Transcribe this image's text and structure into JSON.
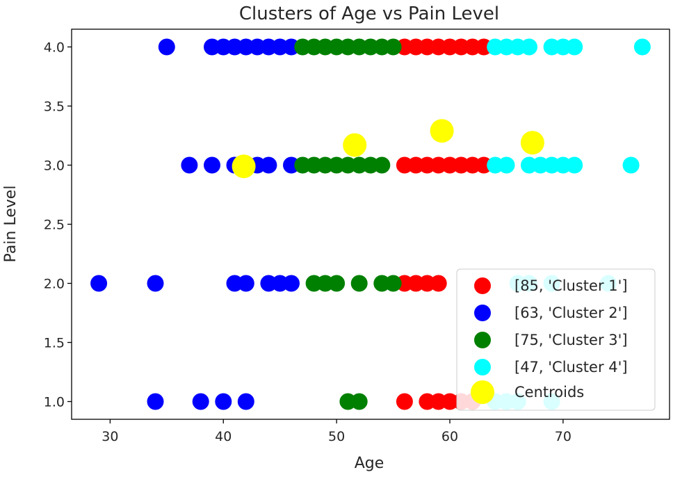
{
  "chart_data": {
    "type": "scatter",
    "title": "Clusters of Age vs Pain Level",
    "xlabel": "Age",
    "ylabel": "Pain Level",
    "xlim": [
      26.6,
      79.4
    ],
    "ylim": [
      0.85,
      4.15
    ],
    "x_ticks": [
      {
        "value": 30,
        "label": "30"
      },
      {
        "value": 40,
        "label": "40"
      },
      {
        "value": 50,
        "label": "50"
      },
      {
        "value": 60,
        "label": "60"
      },
      {
        "value": 70,
        "label": "70"
      }
    ],
    "y_ticks": [
      {
        "value": 1.0,
        "label": "1.0"
      },
      {
        "value": 1.5,
        "label": "1.5"
      },
      {
        "value": 2.0,
        "label": "2.0"
      },
      {
        "value": 2.5,
        "label": "2.5"
      },
      {
        "value": 3.0,
        "label": "3.0"
      },
      {
        "value": 3.5,
        "label": "3.5"
      },
      {
        "value": 4.0,
        "label": "4.0"
      }
    ],
    "grid": false,
    "legend_position": "lower-right",
    "series": [
      {
        "name": "[85, 'Cluster 1']",
        "color": "#ff0000",
        "points": [
          [
            56,
            4
          ],
          [
            57,
            4
          ],
          [
            58,
            4
          ],
          [
            59,
            4
          ],
          [
            60,
            4
          ],
          [
            61,
            4
          ],
          [
            62,
            4
          ],
          [
            63,
            4
          ],
          [
            56,
            3
          ],
          [
            57,
            3
          ],
          [
            58,
            3
          ],
          [
            59,
            3
          ],
          [
            60,
            3
          ],
          [
            61,
            3
          ],
          [
            62,
            3
          ],
          [
            63,
            3
          ],
          [
            56,
            2
          ],
          [
            57,
            2
          ],
          [
            58,
            2
          ],
          [
            59,
            2
          ],
          [
            56,
            1
          ],
          [
            58,
            1
          ],
          [
            59,
            1
          ],
          [
            60,
            1
          ],
          [
            61,
            1
          ],
          [
            62,
            1
          ]
        ]
      },
      {
        "name": "[63, 'Cluster 2']",
        "color": "#0000ff",
        "points": [
          [
            35,
            4
          ],
          [
            39,
            4
          ],
          [
            40,
            4
          ],
          [
            41,
            4
          ],
          [
            42,
            4
          ],
          [
            43,
            4
          ],
          [
            44,
            4
          ],
          [
            45,
            4
          ],
          [
            46,
            4
          ],
          [
            37,
            3
          ],
          [
            39,
            3
          ],
          [
            41,
            3
          ],
          [
            42,
            3
          ],
          [
            43,
            3
          ],
          [
            44,
            3
          ],
          [
            46,
            3
          ],
          [
            29,
            2
          ],
          [
            34,
            2
          ],
          [
            41,
            2
          ],
          [
            42,
            2
          ],
          [
            44,
            2
          ],
          [
            45,
            2
          ],
          [
            46,
            2
          ],
          [
            34,
            1
          ],
          [
            38,
            1
          ],
          [
            40,
            1
          ],
          [
            42,
            1
          ]
        ]
      },
      {
        "name": "[75, 'Cluster 3']",
        "color": "#008000",
        "points": [
          [
            47,
            4
          ],
          [
            48,
            4
          ],
          [
            49,
            4
          ],
          [
            50,
            4
          ],
          [
            51,
            4
          ],
          [
            52,
            4
          ],
          [
            53,
            4
          ],
          [
            54,
            4
          ],
          [
            55,
            4
          ],
          [
            47,
            3
          ],
          [
            48,
            3
          ],
          [
            49,
            3
          ],
          [
            50,
            3
          ],
          [
            51,
            3
          ],
          [
            52,
            3
          ],
          [
            53,
            3
          ],
          [
            54,
            3
          ],
          [
            48,
            2
          ],
          [
            49,
            2
          ],
          [
            50,
            2
          ],
          [
            52,
            2
          ],
          [
            54,
            2
          ],
          [
            55,
            2
          ],
          [
            51,
            1
          ],
          [
            52,
            1
          ]
        ]
      },
      {
        "name": "[47, 'Cluster 4']",
        "color": "#00ffff",
        "points": [
          [
            64,
            4
          ],
          [
            65,
            4
          ],
          [
            66,
            4
          ],
          [
            67,
            4
          ],
          [
            69,
            4
          ],
          [
            70,
            4
          ],
          [
            71,
            4
          ],
          [
            77,
            4
          ],
          [
            64,
            3
          ],
          [
            65,
            3
          ],
          [
            67,
            3
          ],
          [
            68,
            3
          ],
          [
            69,
            3
          ],
          [
            70,
            3
          ],
          [
            71,
            3
          ],
          [
            76,
            3
          ],
          [
            66,
            2
          ],
          [
            67,
            2
          ],
          [
            69,
            2
          ],
          [
            74,
            2
          ],
          [
            64,
            1
          ],
          [
            65,
            1
          ],
          [
            66,
            1
          ],
          [
            69,
            1
          ]
        ]
      },
      {
        "name": "Centroids",
        "color": "#ffff00",
        "points": [
          [
            41.8,
            2.99
          ],
          [
            51.6,
            3.17
          ],
          [
            59.3,
            3.29
          ],
          [
            67.3,
            3.19
          ]
        ]
      }
    ]
  }
}
